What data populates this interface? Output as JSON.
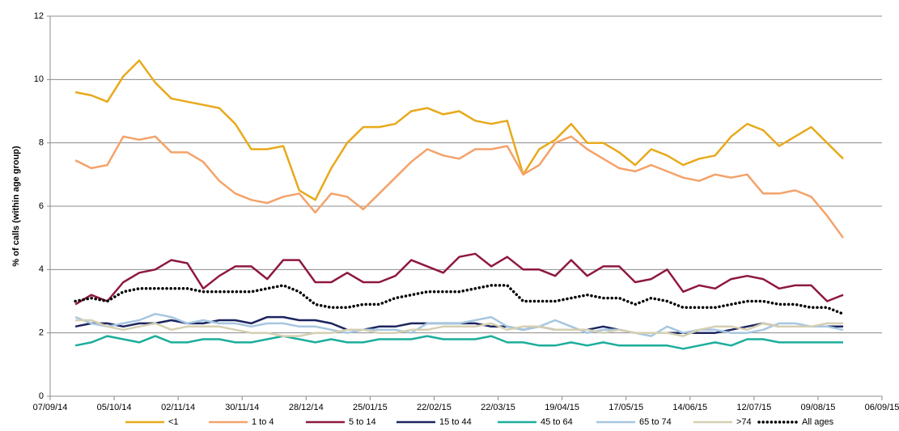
{
  "chart_data": {
    "type": "line",
    "y_label": "% of calls (within age group)",
    "x": [
      "2014-09-18",
      "2014-09-25",
      "2014-10-02",
      "2014-10-09",
      "2014-10-16",
      "2014-10-23",
      "2014-10-30",
      "2014-11-06",
      "2014-11-13",
      "2014-11-20",
      "2014-11-27",
      "2014-12-04",
      "2014-12-11",
      "2014-12-18",
      "2014-12-25",
      "2015-01-01",
      "2015-01-08",
      "2015-01-15",
      "2015-01-22",
      "2015-01-29",
      "2015-02-05",
      "2015-02-12",
      "2015-02-19",
      "2015-02-26",
      "2015-03-05",
      "2015-03-12",
      "2015-03-19",
      "2015-03-26",
      "2015-04-02",
      "2015-04-09",
      "2015-04-16",
      "2015-04-23",
      "2015-04-30",
      "2015-05-07",
      "2015-05-14",
      "2015-05-21",
      "2015-05-28",
      "2015-06-04",
      "2015-06-11",
      "2015-06-18",
      "2015-06-25",
      "2015-07-02",
      "2015-07-09",
      "2015-07-16",
      "2015-07-23",
      "2015-07-30",
      "2015-08-06",
      "2015-08-13",
      "2015-08-20"
    ],
    "xlim": [
      "2014-09-07",
      "2015-09-06"
    ],
    "xticks": [
      {
        "value": "2014-09-07",
        "label": "07/09/14"
      },
      {
        "value": "2014-10-05",
        "label": "05/10/14"
      },
      {
        "value": "2014-11-02",
        "label": "02/11/14"
      },
      {
        "value": "2014-11-30",
        "label": "30/11/14"
      },
      {
        "value": "2014-12-28",
        "label": "28/12/14"
      },
      {
        "value": "2015-01-25",
        "label": "25/01/15"
      },
      {
        "value": "2015-02-22",
        "label": "22/02/15"
      },
      {
        "value": "2015-03-22",
        "label": "22/03/15"
      },
      {
        "value": "2015-04-19",
        "label": "19/04/15"
      },
      {
        "value": "2015-05-17",
        "label": "17/05/15"
      },
      {
        "value": "2015-06-14",
        "label": "14/06/15"
      },
      {
        "value": "2015-07-12",
        "label": "12/07/15"
      },
      {
        "value": "2015-08-09",
        "label": "09/08/15"
      },
      {
        "value": "2015-09-06",
        "label": "06/09/15"
      }
    ],
    "ylim": [
      0,
      12
    ],
    "yticks": [
      0,
      2,
      4,
      6,
      8,
      10,
      12
    ],
    "grid": true,
    "legend": "bottom",
    "series": [
      {
        "name": "<1",
        "color": "#E8A91B",
        "line_style": "solid",
        "values": [
          9.6,
          9.5,
          9.3,
          10.1,
          10.6,
          9.9,
          9.4,
          9.3,
          9.2,
          9.1,
          8.6,
          7.8,
          7.8,
          7.9,
          6.5,
          6.2,
          7.2,
          8.0,
          8.5,
          8.5,
          8.6,
          9.0,
          9.1,
          8.9,
          9.0,
          8.7,
          8.6,
          8.7,
          7.0,
          7.8,
          8.1,
          8.6,
          8.0,
          8.0,
          7.7,
          7.3,
          7.8,
          7.6,
          7.3,
          7.5,
          7.6,
          8.2,
          8.6,
          8.4,
          7.9,
          8.2,
          8.5,
          8.0,
          7.5
        ]
      },
      {
        "name": "1 to 4",
        "color": "#F4A26A",
        "line_style": "solid",
        "values": [
          7.45,
          7.2,
          7.3,
          8.2,
          8.1,
          8.2,
          7.7,
          7.7,
          7.4,
          6.8,
          6.4,
          6.2,
          6.1,
          6.3,
          6.4,
          5.8,
          6.4,
          6.3,
          5.9,
          6.4,
          6.9,
          7.4,
          7.8,
          7.6,
          7.5,
          7.8,
          7.8,
          7.9,
          7.0,
          7.3,
          8.0,
          8.2,
          7.8,
          7.5,
          7.2,
          7.1,
          7.3,
          7.1,
          6.9,
          6.8,
          7.0,
          6.9,
          7.0,
          6.4,
          6.4,
          6.5,
          6.3,
          5.7,
          5.0
        ]
      },
      {
        "name": "5 to 14",
        "color": "#8E1840",
        "line_style": "solid",
        "values": [
          2.9,
          3.2,
          3.0,
          3.6,
          3.9,
          4.0,
          4.3,
          4.2,
          3.4,
          3.8,
          4.1,
          4.1,
          3.7,
          4.3,
          4.3,
          3.6,
          3.6,
          3.9,
          3.6,
          3.6,
          3.8,
          4.3,
          4.1,
          3.9,
          4.4,
          4.5,
          4.1,
          4.4,
          4.0,
          4.0,
          3.8,
          4.3,
          3.8,
          4.1,
          4.1,
          3.6,
          3.7,
          4.0,
          3.3,
          3.5,
          3.4,
          3.7,
          3.8,
          3.7,
          3.4,
          3.5,
          3.5,
          3.0,
          3.2
        ]
      },
      {
        "name": "15 to 44",
        "color": "#1C2560",
        "line_style": "solid",
        "values": [
          2.2,
          2.3,
          2.3,
          2.2,
          2.3,
          2.3,
          2.4,
          2.3,
          2.3,
          2.4,
          2.4,
          2.3,
          2.5,
          2.5,
          2.4,
          2.4,
          2.3,
          2.1,
          2.1,
          2.2,
          2.2,
          2.3,
          2.3,
          2.3,
          2.3,
          2.3,
          2.2,
          2.2,
          2.1,
          2.2,
          2.1,
          2.1,
          2.1,
          2.2,
          2.1,
          2.0,
          2.0,
          2.0,
          2.0,
          2.0,
          2.0,
          2.1,
          2.2,
          2.3,
          2.2,
          2.2,
          2.2,
          2.2,
          2.2
        ]
      },
      {
        "name": "45 to 64",
        "color": "#1BAE9C",
        "line_style": "solid",
        "values": [
          1.6,
          1.7,
          1.9,
          1.8,
          1.7,
          1.9,
          1.7,
          1.7,
          1.8,
          1.8,
          1.7,
          1.7,
          1.8,
          1.9,
          1.8,
          1.7,
          1.8,
          1.7,
          1.7,
          1.8,
          1.8,
          1.8,
          1.9,
          1.8,
          1.8,
          1.8,
          1.9,
          1.7,
          1.7,
          1.6,
          1.6,
          1.7,
          1.6,
          1.7,
          1.6,
          1.6,
          1.6,
          1.6,
          1.5,
          1.6,
          1.7,
          1.6,
          1.8,
          1.8,
          1.7,
          1.7,
          1.7,
          1.7,
          1.7
        ]
      },
      {
        "name": "65 to 74",
        "color": "#A6C6E0",
        "line_style": "solid",
        "values": [
          2.5,
          2.3,
          2.2,
          2.3,
          2.4,
          2.6,
          2.5,
          2.3,
          2.4,
          2.3,
          2.3,
          2.2,
          2.3,
          2.3,
          2.2,
          2.2,
          2.1,
          2.0,
          2.1,
          2.1,
          2.1,
          2.0,
          2.3,
          2.3,
          2.3,
          2.4,
          2.5,
          2.2,
          2.1,
          2.2,
          2.4,
          2.2,
          2.0,
          2.1,
          2.1,
          2.0,
          1.9,
          2.2,
          2.0,
          2.1,
          2.1,
          2.0,
          2.0,
          2.1,
          2.3,
          2.3,
          2.2,
          2.2,
          2.1
        ]
      },
      {
        "name": ">74",
        "color": "#D5CFB2",
        "line_style": "solid",
        "values": [
          2.4,
          2.4,
          2.2,
          2.1,
          2.2,
          2.3,
          2.1,
          2.2,
          2.2,
          2.2,
          2.1,
          2.0,
          2.0,
          1.9,
          1.9,
          2.0,
          2.0,
          2.1,
          2.1,
          2.0,
          2.0,
          2.1,
          2.1,
          2.2,
          2.2,
          2.2,
          2.3,
          2.1,
          2.2,
          2.2,
          2.1,
          2.1,
          2.1,
          2.0,
          2.1,
          2.0,
          2.0,
          2.0,
          1.9,
          2.1,
          2.2,
          2.2,
          2.1,
          2.3,
          2.2,
          2.2,
          2.2,
          2.3,
          2.3
        ]
      },
      {
        "name": "All ages",
        "color": "#000000",
        "line_style": "dotted",
        "values": [
          3.0,
          3.1,
          3.0,
          3.3,
          3.4,
          3.4,
          3.4,
          3.4,
          3.3,
          3.3,
          3.3,
          3.3,
          3.4,
          3.5,
          3.3,
          2.9,
          2.8,
          2.8,
          2.9,
          2.9,
          3.1,
          3.2,
          3.3,
          3.3,
          3.3,
          3.4,
          3.5,
          3.5,
          3.0,
          3.0,
          3.0,
          3.1,
          3.2,
          3.1,
          3.1,
          2.9,
          3.1,
          3.0,
          2.8,
          2.8,
          2.8,
          2.9,
          3.0,
          3.0,
          2.9,
          2.9,
          2.8,
          2.8,
          2.6
        ]
      }
    ]
  }
}
